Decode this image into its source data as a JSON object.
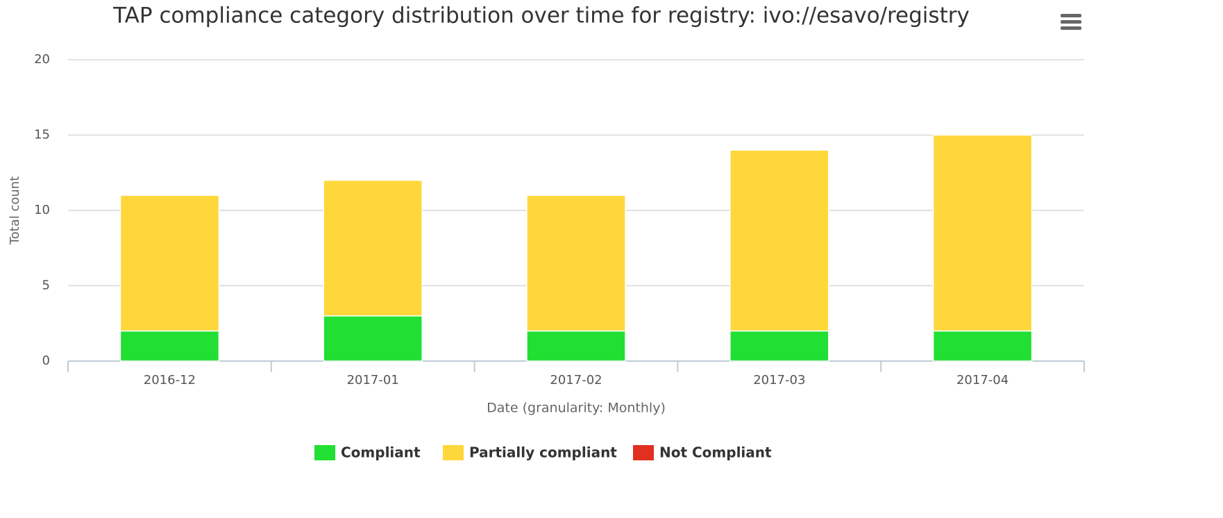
{
  "chart_data": {
    "type": "bar",
    "stacked": true,
    "title": "TAP compliance category distribution over time for registry: ivo://esavo/registry",
    "x_label": "Date (granularity: Monthly)",
    "y_label": "Total count",
    "categories": [
      "2016-12",
      "2017-01",
      "2017-02",
      "2017-03",
      "2017-04"
    ],
    "series": [
      {
        "name": "Compliant",
        "color": "#22e033",
        "values": [
          2,
          3,
          2,
          2,
          2
        ]
      },
      {
        "name": "Partially compliant",
        "color": "#fed73b",
        "values": [
          9,
          9,
          9,
          12,
          13
        ]
      },
      {
        "name": "Not Compliant",
        "color": "#e1301f",
        "values": [
          0,
          0,
          0,
          0,
          0
        ]
      }
    ],
    "ylim": [
      0,
      20
    ],
    "yticks": [
      0,
      5,
      10,
      15,
      20
    ],
    "grid": true,
    "legend": "bottom"
  }
}
